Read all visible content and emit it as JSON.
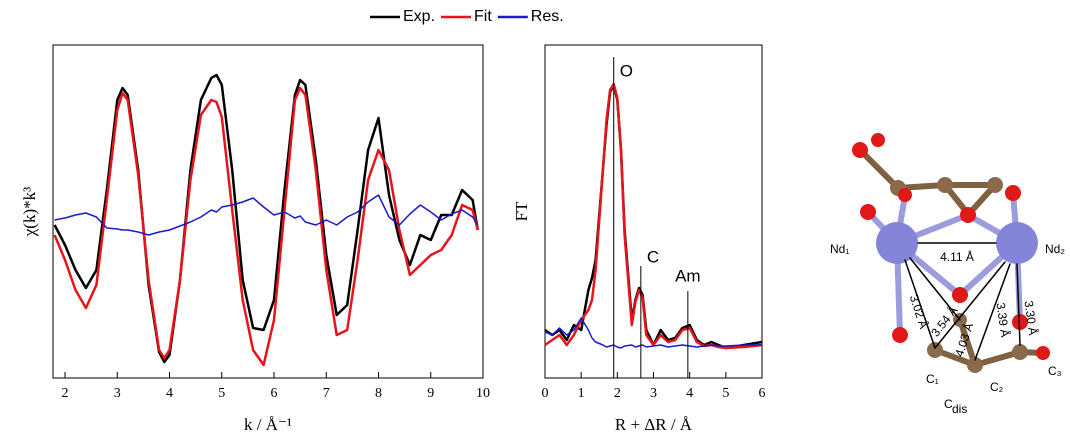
{
  "chart_data": [
    {
      "type": "line",
      "xlabel": "k / Å⁻¹",
      "ylabel": "χ(k)*k³",
      "x": [
        1.8,
        2.0,
        2.2,
        2.4,
        2.6,
        2.8,
        3.0,
        3.1,
        3.2,
        3.4,
        3.6,
        3.8,
        3.9,
        4.0,
        4.2,
        4.4,
        4.6,
        4.8,
        4.9,
        5.0,
        5.2,
        5.4,
        5.6,
        5.8,
        6.0,
        6.2,
        6.4,
        6.5,
        6.6,
        6.8,
        7.0,
        7.2,
        7.4,
        7.6,
        7.8,
        8.0,
        8.2,
        8.4,
        8.6,
        8.8,
        9.0,
        9.2,
        9.4,
        9.6,
        9.8,
        9.9
      ],
      "series": [
        {
          "name": "Exp.",
          "color": "#000000",
          "values": [
            -0.03,
            -0.23,
            -0.48,
            -0.66,
            -0.48,
            0.32,
            1.22,
            1.34,
            1.27,
            0.52,
            -0.63,
            -1.3,
            -1.4,
            -1.33,
            -0.58,
            0.52,
            1.22,
            1.44,
            1.47,
            1.37,
            0.52,
            -0.58,
            -1.06,
            -1.08,
            -0.78,
            0.32,
            1.27,
            1.42,
            1.37,
            0.62,
            -0.33,
            -0.93,
            -0.83,
            -0.08,
            0.72,
            1.04,
            0.27,
            -0.18,
            -0.43,
            -0.13,
            -0.18,
            0.07,
            0.07,
            0.32,
            0.22,
            -0.08
          ]
        },
        {
          "name": "Fit",
          "color": "#e8141c",
          "values": [
            -0.13,
            -0.38,
            -0.68,
            -0.86,
            -0.63,
            0.22,
            1.12,
            1.29,
            1.22,
            0.47,
            -0.58,
            -1.28,
            -1.36,
            -1.28,
            -0.58,
            0.42,
            1.07,
            1.22,
            1.2,
            1.05,
            0.12,
            -0.78,
            -1.28,
            -1.43,
            -0.98,
            0.12,
            1.22,
            1.34,
            1.27,
            0.52,
            -0.48,
            -1.13,
            -1.08,
            -0.38,
            0.42,
            0.72,
            0.52,
            -0.08,
            -0.53,
            -0.43,
            -0.33,
            -0.28,
            -0.13,
            0.17,
            0.12,
            -0.08
          ]
        },
        {
          "name": "Res.",
          "color": "#1a1acc",
          "values": [
            0.02,
            0.04,
            0.07,
            0.09,
            0.05,
            -0.06,
            -0.07,
            -0.08,
            -0.08,
            -0.1,
            -0.13,
            -0.1,
            -0.09,
            -0.08,
            -0.04,
            0,
            0.05,
            0.12,
            0.1,
            0.15,
            0.17,
            0.2,
            0.24,
            0.15,
            0.07,
            0.1,
            0.04,
            0.06,
            0,
            -0.03,
            0.02,
            -0.03,
            0.05,
            0.1,
            0.2,
            0.27,
            0.05,
            -0.03,
            0.08,
            0.17,
            0.1,
            0.02,
            0.08,
            0.12,
            0.05,
            -0.03
          ]
        }
      ],
      "xlim": [
        1.77,
        10
      ],
      "xticks": [
        2,
        3,
        4,
        5,
        6,
        7,
        8,
        9,
        10
      ],
      "ylim": [
        -1.56,
        1.77
      ]
    },
    {
      "type": "line",
      "xlabel": "R + ΔR / Å",
      "ylabel": "FT",
      "x": [
        0,
        0.2,
        0.4,
        0.6,
        0.8,
        1.0,
        1.2,
        1.3,
        1.4,
        1.6,
        1.7,
        1.8,
        1.9,
        2.0,
        2.1,
        2.2,
        2.4,
        2.5,
        2.6,
        2.7,
        2.8,
        3.0,
        3.2,
        3.4,
        3.6,
        3.8,
        4.0,
        4.2,
        4.4,
        4.6,
        4.8,
        5.0,
        5.5,
        6.0
      ],
      "series": [
        {
          "name": "Exp.",
          "color": "#000000",
          "values": [
            0.48,
            0.43,
            0.48,
            0.38,
            0.53,
            0.48,
            0.88,
            1.0,
            1.18,
            2.08,
            2.53,
            2.86,
            2.93,
            2.78,
            2.28,
            1.48,
            0.58,
            0.78,
            0.9,
            0.83,
            0.48,
            0.33,
            0.48,
            0.38,
            0.4,
            0.5,
            0.53,
            0.38,
            0.33,
            0.36,
            0.33,
            0.3,
            0.33,
            0.36
          ]
        },
        {
          "name": "Fit",
          "color": "#e8141c",
          "values": [
            0.33,
            0.38,
            0.43,
            0.33,
            0.43,
            0.58,
            0.68,
            0.78,
            1.08,
            2.08,
            2.58,
            2.88,
            2.94,
            2.8,
            2.28,
            1.43,
            0.53,
            0.76,
            0.88,
            0.8,
            0.43,
            0.33,
            0.43,
            0.36,
            0.38,
            0.48,
            0.5,
            0.36,
            0.32,
            0.33,
            0.31,
            0.3,
            0.31,
            0.33
          ]
        },
        {
          "name": "Res.",
          "color": "#1a1acc",
          "values": [
            0.46,
            0.43,
            0.5,
            0.43,
            0.48,
            0.6,
            0.48,
            0.4,
            0.36,
            0.33,
            0.31,
            0.32,
            0.33,
            0.31,
            0.3,
            0.32,
            0.33,
            0.31,
            0.32,
            0.33,
            0.31,
            0.32,
            0.33,
            0.31,
            0.32,
            0.33,
            0.32,
            0.31,
            0.32,
            0.33,
            0.32,
            0.32,
            0.33,
            0.33
          ]
        }
      ],
      "annotations": [
        {
          "text": "O",
          "x": 1.9,
          "y": 3.06
        },
        {
          "text": "C",
          "x": 2.65,
          "y": 1.2
        },
        {
          "text": "Am",
          "x": 3.95,
          "y": 0.95
        }
      ],
      "xlim": [
        0,
        6
      ],
      "xticks": [
        0,
        1,
        2,
        3,
        4,
        5,
        6
      ],
      "ylim": [
        0,
        3.33
      ]
    }
  ],
  "diagram": {
    "atoms": [
      "Nd₁",
      "Nd₂",
      "C₁",
      "C₂",
      "C₃"
    ],
    "cdis": {
      "main": "C",
      "sub": "dis"
    },
    "distances": [
      "4.11 Å",
      "3.02 Å",
      "3.54 Å",
      "4.03 Å",
      "3.39 Å",
      "3.30 Å"
    ]
  }
}
